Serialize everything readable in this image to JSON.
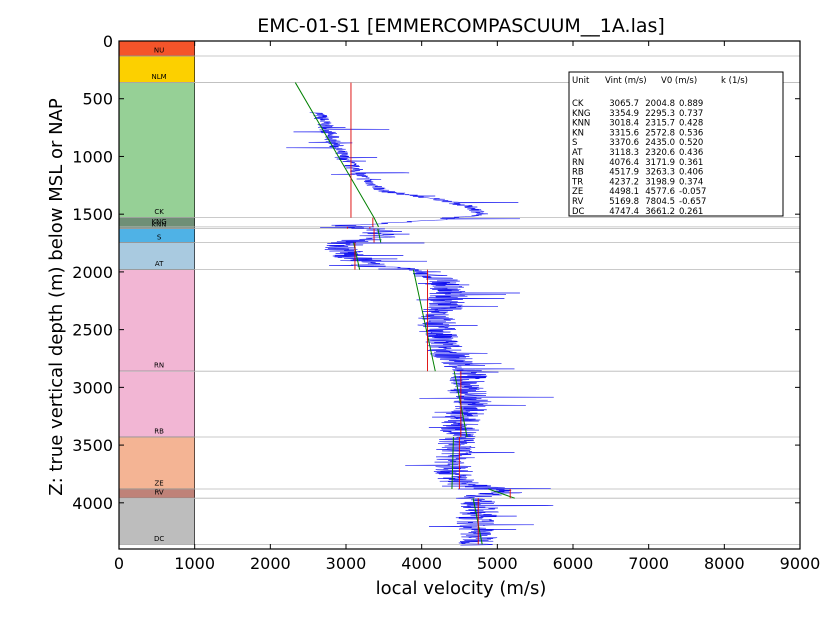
{
  "chart_data": {
    "type": "line",
    "title": "EMC-01-S1 [EMMERCOMPASCUUM__1A.las]",
    "xlabel": "local velocity (m/s)",
    "ylabel": "Z: true vertical depth (m) below MSL or NAP",
    "xlim": [
      0,
      9000
    ],
    "ylim": [
      4400,
      0
    ],
    "xticks": [
      "0",
      "1000",
      "2000",
      "3000",
      "4000",
      "5000",
      "6000",
      "7000",
      "8000",
      "9000"
    ],
    "yticks": [
      "0",
      "500",
      "1000",
      "1500",
      "2000",
      "2500",
      "3000",
      "3500",
      "4000"
    ],
    "grid": false,
    "units": [
      {
        "name": "NU",
        "top": 0,
        "base": 130,
        "color": "#f4542a",
        "label_depth": 100
      },
      {
        "name": "NLM",
        "top": 130,
        "base": 360,
        "color": "#fcd000",
        "label_depth": 330
      },
      {
        "name": "CK",
        "top": 360,
        "base": 1530,
        "color": "#96d096",
        "label_depth": 1500
      },
      {
        "name": "KNG",
        "top": 1530,
        "base": 1610,
        "color": "#6f8f76",
        "label_depth": 1585
      },
      {
        "name": "KNN",
        "top": 1610,
        "base": 1625,
        "color": "#8ca896",
        "label_depth": 1610
      },
      {
        "name": "S",
        "top": 1625,
        "base": 1745,
        "color": "#4fb2e6",
        "label_depth": 1720
      },
      {
        "name": "AT",
        "top": 1745,
        "base": 1980,
        "color": "#a9cae0",
        "label_depth": 1950
      },
      {
        "name": "RN",
        "top": 1980,
        "base": 2860,
        "color": "#f2b6d4",
        "label_depth": 2830
      },
      {
        "name": "RB",
        "top": 2860,
        "base": 3430,
        "color": "#f2b6d4",
        "label_depth": 3400
      },
      {
        "name": "ZE",
        "top": 3430,
        "base": 3880,
        "color": "#f4b494",
        "label_depth": 3850
      },
      {
        "name": "RV",
        "top": 3880,
        "base": 3960,
        "color": "#bf8278",
        "label_depth": 3930
      },
      {
        "name": "DC",
        "top": 3960,
        "base": 4360,
        "color": "#bdbdbd",
        "label_depth": 4330
      }
    ],
    "boundaries": [
      130,
      360,
      1530,
      1610,
      1625,
      1745,
      1980,
      2860,
      3430,
      3880,
      3960,
      4360
    ],
    "vint_segments": [
      {
        "unit": "CK",
        "top": 360,
        "base": 1530,
        "vint": 3065.7
      },
      {
        "unit": "KNG",
        "top": 1530,
        "base": 1610,
        "vint": 3354.9
      },
      {
        "unit": "KNN",
        "top": 1610,
        "base": 1625,
        "vint": 3018.4
      },
      {
        "unit": "KN",
        "top": 1610,
        "base": 1625,
        "vint": 3315.6
      },
      {
        "unit": "S",
        "top": 1625,
        "base": 1745,
        "vint": 3370.6
      },
      {
        "unit": "AT",
        "top": 1745,
        "base": 1980,
        "vint": 3118.3
      },
      {
        "unit": "RN",
        "top": 1980,
        "base": 2860,
        "vint": 4076.4
      },
      {
        "unit": "RB",
        "top": 2860,
        "base": 3430,
        "vint": 4517.9
      },
      {
        "unit": "ZE",
        "top": 3430,
        "base": 3880,
        "vint": 4498.1
      },
      {
        "unit": "RV",
        "top": 3880,
        "base": 3960,
        "vint": 5169.8
      },
      {
        "unit": "DC",
        "top": 3960,
        "base": 4360,
        "vint": 4747.4
      }
    ],
    "v0k_trend": [
      {
        "unit": "CK",
        "z": [
          360,
          1530
        ],
        "v": [
          2330,
          3370
        ]
      },
      {
        "unit": "KNG",
        "z": [
          1530,
          1610
        ],
        "v": [
          3370,
          3430
        ]
      },
      {
        "unit": "S",
        "z": [
          1625,
          1745
        ],
        "v": [
          3420,
          3460
        ]
      },
      {
        "unit": "AT",
        "z": [
          1745,
          1980
        ],
        "v": [
          3100,
          3180
        ]
      },
      {
        "unit": "RN",
        "z": [
          1980,
          2860
        ],
        "v": [
          3890,
          4180
        ]
      },
      {
        "unit": "RB",
        "z": [
          2860,
          3430
        ],
        "v": [
          4430,
          4600
        ]
      },
      {
        "unit": "ZE",
        "z": [
          3430,
          3880
        ],
        "v": [
          4420,
          4400
        ]
      },
      {
        "unit": "RV",
        "z": [
          3880,
          3960
        ],
        "v": [
          4880,
          5230
        ]
      },
      {
        "unit": "DC",
        "z": [
          3960,
          4360
        ],
        "v": [
          4680,
          4800
        ]
      }
    ],
    "velocity_log": {
      "name": "local velocity",
      "z": [
        620,
        700,
        800,
        900,
        1000,
        1100,
        1200,
        1300,
        1380,
        1450,
        1500,
        1550,
        1600,
        1650,
        1700,
        1750,
        1800,
        1850,
        1900,
        1950,
        2000,
        2100,
        2200,
        2300,
        2400,
        2500,
        2600,
        2700,
        2800,
        2900,
        3000,
        3100,
        3200,
        3300,
        3400,
        3500,
        3600,
        3700,
        3800,
        3850,
        3900,
        3950,
        4000,
        4100,
        4200,
        4300,
        4370
      ],
      "v": [
        2630,
        2700,
        2780,
        2860,
        2950,
        3100,
        3250,
        3500,
        4300,
        4700,
        4800,
        4200,
        3050,
        3500,
        3400,
        3000,
        2950,
        3050,
        3150,
        3350,
        4050,
        4300,
        4350,
        4300,
        4200,
        4200,
        4250,
        4350,
        4500,
        4650,
        4550,
        4700,
        4600,
        4500,
        4500,
        4450,
        4450,
        4400,
        4450,
        4650,
        5200,
        4700,
        4750,
        4750,
        4700,
        4750,
        4750
      ]
    },
    "legend_table": {
      "header": {
        "unit": "Unit",
        "vint": "Vint (m/s)",
        "v0": "V0 (m/s)",
        "k": "k (1/s)"
      },
      "rows": [
        {
          "unit": "CK",
          "vint": "3065.7",
          "v0": "2004.8",
          "k": "0.889"
        },
        {
          "unit": "KNG",
          "vint": "3354.9",
          "v0": "2295.3",
          "k": "0.737"
        },
        {
          "unit": "KNN",
          "vint": "3018.4",
          "v0": "2315.7",
          "k": "0.428"
        },
        {
          "unit": "KN",
          "vint": "3315.6",
          "v0": "2572.8",
          "k": "0.536"
        },
        {
          "unit": "S",
          "vint": "3370.6",
          "v0": "2435.0",
          "k": "0.520"
        },
        {
          "unit": "AT",
          "vint": "3118.3",
          "v0": "2320.6",
          "k": "0.436"
        },
        {
          "unit": "RN",
          "vint": "4076.4",
          "v0": "3171.9",
          "k": "0.361"
        },
        {
          "unit": "RB",
          "vint": "4517.9",
          "v0": "3263.3",
          "k": "0.406"
        },
        {
          "unit": "TR",
          "vint": "4237.2",
          "v0": "3198.9",
          "k": "0.374"
        },
        {
          "unit": "ZE",
          "vint": "4498.1",
          "v0": "4577.6",
          "k": "-0.057"
        },
        {
          "unit": "RV",
          "vint": "5169.8",
          "v0": "7804.5",
          "k": "-0.657"
        },
        {
          "unit": "DC",
          "vint": "4747.4",
          "v0": "3661.2",
          "k": "0.261"
        }
      ]
    }
  }
}
